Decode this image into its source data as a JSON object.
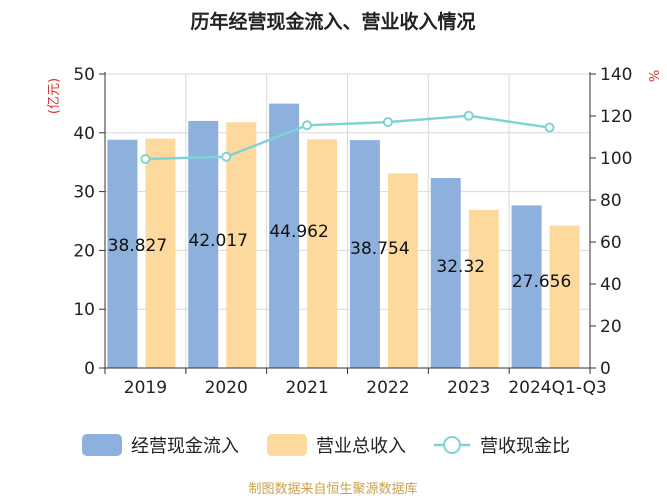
{
  "chart_data": {
    "type": "bar",
    "title": "历年经营现金流入、营业收入情况",
    "categories": [
      "2019",
      "2020",
      "2021",
      "2022",
      "2023",
      "2024Q1-Q3"
    ],
    "series": [
      {
        "name": "经营现金流入",
        "type": "bar",
        "axis": "left",
        "values": [
          38.827,
          42.017,
          44.962,
          38.754,
          32.32,
          27.656
        ]
      },
      {
        "name": "营业总收入",
        "type": "bar",
        "axis": "left",
        "values": [
          39.0,
          41.8,
          38.9,
          33.1,
          26.9,
          24.2
        ]
      },
      {
        "name": "营收现金比",
        "type": "line",
        "axis": "right",
        "values": [
          99.5,
          100.6,
          115.6,
          117.1,
          120.1,
          114.5
        ]
      }
    ],
    "data_labels": [
      "38.827",
      "42.017",
      "44.962",
      "38.754",
      "32.32",
      "27.656"
    ],
    "y_left": {
      "label": "(亿元)",
      "ylim": [
        0,
        50
      ],
      "ticks": [
        0,
        10,
        20,
        30,
        40,
        50
      ]
    },
    "y_right": {
      "label": "%",
      "ylim": [
        0,
        140
      ],
      "ticks": [
        0,
        20,
        40,
        60,
        80,
        100,
        120,
        140
      ]
    },
    "legend_position": "bottom",
    "grid": true,
    "colors": {
      "bar1": "#8eb0dc",
      "bar2": "#fdd99e",
      "line": "#7fd3d8",
      "axis_label": "#e02b2b",
      "source": "#c8a24a"
    }
  },
  "source_note": "制图数据来自恒生聚源数据库"
}
